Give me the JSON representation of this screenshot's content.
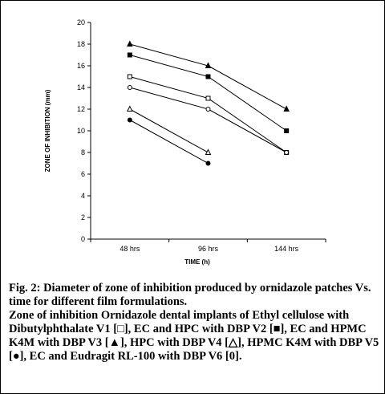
{
  "chart_data": {
    "type": "line",
    "categories": [
      "48 hrs",
      "96 hrs",
      "144 hrs"
    ],
    "xlabel": "TIME (h)",
    "ylabel": "ZONE OF INHIBITION (mm)",
    "ylim": [
      0,
      20
    ],
    "yticks": [
      "0",
      "2",
      "4",
      "6",
      "8",
      "10",
      "12",
      "14",
      "16",
      "18",
      "20"
    ],
    "grid": false,
    "legend": "none",
    "series": [
      {
        "values": [
          18,
          16,
          12
        ],
        "marker": "filled-triangle"
      },
      {
        "values": [
          17,
          15,
          10
        ],
        "marker": "filled-square"
      },
      {
        "values": [
          15,
          13,
          8
        ],
        "marker": "open-square"
      },
      {
        "values": [
          14,
          12,
          8
        ],
        "marker": "open-circle"
      },
      {
        "values": [
          12,
          8,
          null
        ],
        "marker": "open-triangle"
      },
      {
        "values": [
          11,
          7,
          null
        ],
        "marker": "filled-circle"
      }
    ]
  },
  "caption": {
    "line1": "Fig. 2: Diameter of zone of inhibition produced by ornidazole patches Vs. time for different film formulations.",
    "line2": "Zone of inhibition Ornidazole dental implants of Ethyl cellulose with Dibutylphthalate V1 [□], EC and HPC with DBP V2 [■], EC and HPMC K4M with DBP V3 [▲], HPC with DBP V4 [△], HPMC K4M with DBP V5 [●], EC and Eudragit RL-100 with DBP V6 [0]."
  }
}
